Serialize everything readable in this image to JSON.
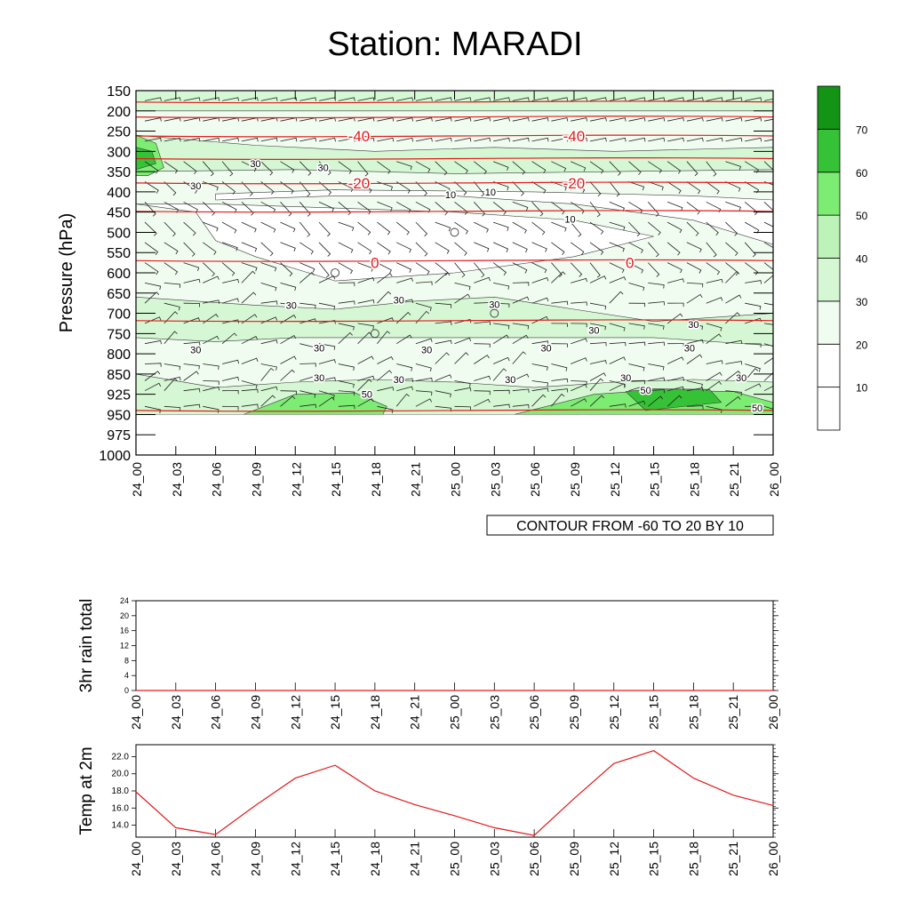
{
  "title": "Station: MARADI",
  "colors": {
    "isotherm": "#e31a1c",
    "temp_line": "#e31a1c",
    "contour_line": "#3a3a3a",
    "barb": "#222222",
    "rh_levels": [
      "#ffffff",
      "#ffffff",
      "#f0fcf0",
      "#d6f7d4",
      "#bdf2b9",
      "#7dec73",
      "#36c236",
      "#149414"
    ]
  },
  "chart_data": [
    {
      "type": "heatmap",
      "name": "time-height cross section (relative humidity shading, temperature isotherms, wind barbs)",
      "ylabel": "Pressure (hPa)",
      "y_ticks": [
        150,
        200,
        250,
        300,
        350,
        400,
        450,
        500,
        550,
        600,
        650,
        700,
        750,
        800,
        850,
        925,
        950,
        975,
        1000
      ],
      "x_ticks": [
        "24_00",
        "24_03",
        "24_06",
        "24_09",
        "24_12",
        "24_15",
        "24_18",
        "24_21",
        "25_00",
        "25_03",
        "25_06",
        "25_09",
        "25_12",
        "25_15",
        "25_18",
        "25_21",
        "26_00"
      ],
      "colorbar": {
        "labels": [
          "10",
          "20",
          "30",
          "40",
          "50",
          "60",
          "70"
        ],
        "levels": [
          0,
          10,
          20,
          30,
          40,
          50,
          60,
          70,
          80
        ]
      },
      "contour_info": "CONTOUR FROM -60 TO 20 BY 10",
      "isotherm_labels": [
        {
          "text": "-40",
          "x_index": 5.6,
          "pressure": 262
        },
        {
          "text": "-40",
          "x_index": 11.0,
          "pressure": 262
        },
        {
          "text": "-20",
          "x_index": 5.6,
          "pressure": 378
        },
        {
          "text": "-20",
          "x_index": 11.0,
          "pressure": 378
        },
        {
          "text": "0",
          "x_index": 6.0,
          "pressure": 575
        },
        {
          "text": "0",
          "x_index": 12.4,
          "pressure": 575
        }
      ],
      "rh_labels": [
        {
          "text": "30",
          "x_index": 3.0,
          "pressure": 330
        },
        {
          "text": "30",
          "x_index": 4.7,
          "pressure": 340
        },
        {
          "text": "30",
          "x_index": 1.5,
          "pressure": 385
        },
        {
          "text": "10",
          "x_index": 7.9,
          "pressure": 407
        },
        {
          "text": "10",
          "x_index": 8.9,
          "pressure": 400
        },
        {
          "text": "10",
          "x_index": 10.9,
          "pressure": 467
        },
        {
          "text": "30",
          "x_index": 3.9,
          "pressure": 680
        },
        {
          "text": "30",
          "x_index": 6.6,
          "pressure": 667
        },
        {
          "text": "30",
          "x_index": 9.0,
          "pressure": 678
        },
        {
          "text": "30",
          "x_index": 11.5,
          "pressure": 742
        },
        {
          "text": "30",
          "x_index": 14.0,
          "pressure": 727
        },
        {
          "text": "30",
          "x_index": 1.5,
          "pressure": 790
        },
        {
          "text": "30",
          "x_index": 4.6,
          "pressure": 785
        },
        {
          "text": "30",
          "x_index": 7.3,
          "pressure": 790
        },
        {
          "text": "30",
          "x_index": 10.3,
          "pressure": 785
        },
        {
          "text": "30",
          "x_index": 13.9,
          "pressure": 785
        },
        {
          "text": "30",
          "x_index": 4.6,
          "pressure": 863
        },
        {
          "text": "30",
          "x_index": 6.6,
          "pressure": 870
        },
        {
          "text": "30",
          "x_index": 9.4,
          "pressure": 870
        },
        {
          "text": "30",
          "x_index": 12.3,
          "pressure": 863
        },
        {
          "text": "30",
          "x_index": 15.2,
          "pressure": 863
        },
        {
          "text": "50",
          "x_index": 5.8,
          "pressure": 925
        },
        {
          "text": "50",
          "x_index": 12.8,
          "pressure": 910
        },
        {
          "text": "50",
          "x_index": 15.6,
          "pressure": 942
        }
      ]
    },
    {
      "type": "line",
      "name": "3hr rain total",
      "ylabel": "3hr rain total",
      "ylim": [
        0,
        24
      ],
      "y_ticks": [
        0,
        4,
        8,
        12,
        16,
        20,
        24
      ],
      "x": [
        "24_00",
        "24_03",
        "24_06",
        "24_09",
        "24_12",
        "24_15",
        "24_18",
        "24_21",
        "25_00",
        "25_03",
        "25_06",
        "25_09",
        "25_12",
        "25_15",
        "25_18",
        "25_21",
        "26_00"
      ],
      "values": [
        0,
        0,
        0,
        0,
        0,
        0,
        0,
        0,
        0,
        0,
        0,
        0,
        0,
        0,
        0,
        0,
        0
      ]
    },
    {
      "type": "line",
      "name": "Temp at 2m",
      "ylabel": "Temp at 2m",
      "ylim": [
        12.6,
        23.4
      ],
      "y_ticks": [
        "14.0",
        "16.0",
        "18.0",
        "20.0",
        "22.0"
      ],
      "x": [
        "24_00",
        "24_03",
        "24_06",
        "24_09",
        "24_12",
        "24_15",
        "24_18",
        "24_21",
        "25_00",
        "25_03",
        "25_06",
        "25_09",
        "25_12",
        "25_15",
        "25_18",
        "25_21",
        "26_00"
      ],
      "values": [
        17.9,
        13.7,
        12.9,
        16.3,
        19.5,
        21.0,
        18.0,
        16.4,
        15.1,
        13.7,
        12.8,
        17.1,
        21.2,
        22.7,
        19.5,
        17.5,
        16.3
      ]
    }
  ]
}
